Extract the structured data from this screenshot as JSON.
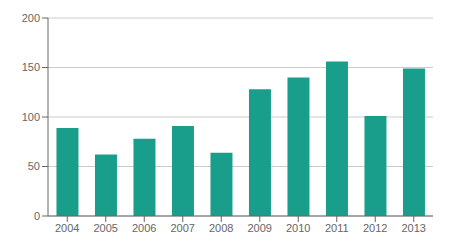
{
  "chart_data": {
    "type": "bar",
    "categories": [
      "2004",
      "2005",
      "2006",
      "2007",
      "2008",
      "2009",
      "2010",
      "2011",
      "2012",
      "2013"
    ],
    "values": [
      89,
      62,
      78,
      91,
      64,
      128,
      140,
      156,
      101,
      149
    ],
    "color": "#1a9e8c",
    "ylim": [
      0,
      200
    ],
    "yticks": [
      0,
      50,
      100,
      150,
      200
    ],
    "grid": true
  }
}
